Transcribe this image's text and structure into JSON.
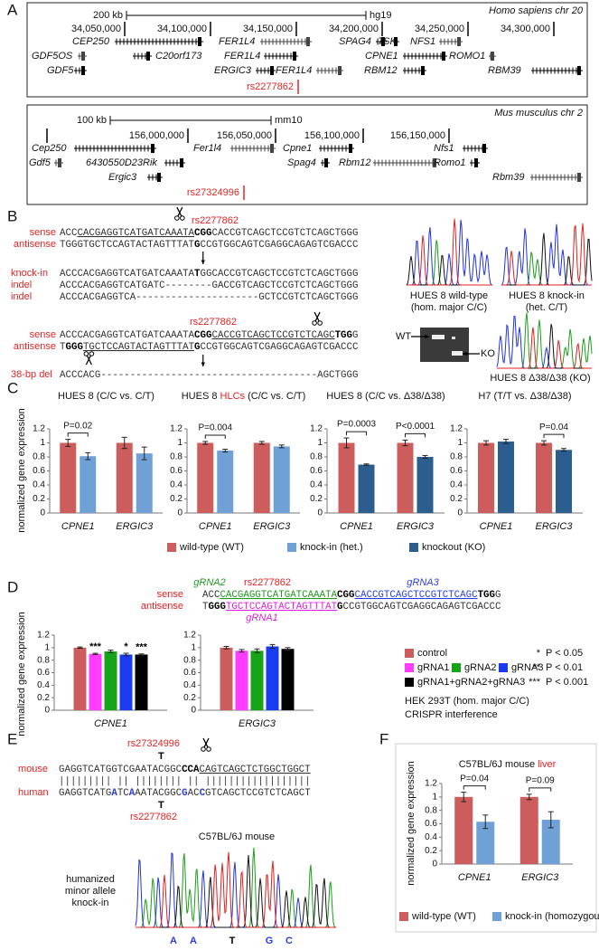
{
  "panel_labels": [
    "A",
    "B",
    "C",
    "D",
    "E",
    "F"
  ],
  "panel_a": {
    "human": {
      "species": "Homo sapiens chr 20",
      "scale": "200 kb",
      "assembly": "hg19",
      "coords": [
        "34,050,000",
        "34,100,000",
        "34,150,000",
        "34,200,000",
        "34,250,000",
        "34,300,000"
      ],
      "genes": [
        "CEP250",
        "GDF5OS",
        "GDF5",
        "C20orf173",
        "FER1L4",
        "FER1L4",
        "ERGIC3",
        "FER1L4",
        "SPAG4",
        "7SK",
        "NFS1",
        "CPNE1",
        "RBM12",
        "ROMO1",
        "RBM39"
      ],
      "snp": "rs2277862"
    },
    "mouse": {
      "species": "Mus musculus chr 2",
      "scale": "100 kb",
      "assembly": "mm10",
      "coords": [
        "156,000,000",
        "156,050,000",
        "156,100,000",
        "156,150,000"
      ],
      "genes": [
        "Cep250",
        "Gdf5",
        "6430550D23Rik",
        "Ergic3",
        "Fer1l4",
        "Spag4",
        "Cpne1",
        "Rbm12",
        "Nfs1",
        "Romo1",
        "Rbm39"
      ],
      "snp": "rs27324996"
    }
  },
  "panel_b": {
    "block1": {
      "snp": "rs2277862",
      "sense_label": "sense",
      "antisense_label": "antisense",
      "sense": [
        "ACC",
        "CACGAGGTCATGATCAAATA",
        "CGG",
        "CACCGTCAGCTCCGTCTCAGCTGGG"
      ],
      "antisense": [
        "TGGGTGCTCCAGTACTAGTTTAT",
        "G",
        "CCGTGGCAGTCGAGGCAGAGTCGACCC"
      ],
      "edits": [
        {
          "label": "knock-in",
          "seq": [
            "ACCCACGAGGTCATGATCAAATA",
            "T",
            "GGCACCGTCAGCTCCGTCTCAGCTGGG"
          ]
        },
        {
          "label": "indel",
          "seq": [
            "ACCCACGAGGTCATGATC--------GACCGTCAGCTCCGTCTCAGCTGGG"
          ]
        },
        {
          "label": "indel",
          "seq": [
            "ACCCACGAGGTCA---------------------GCTCCGTCTCAGCTGGG"
          ]
        }
      ]
    },
    "block2": {
      "snp": "rs2277862",
      "sense_label": "sense",
      "antisense_label": "antisense",
      "sense": [
        "ACCCACGAGGTCATGATCAAATA",
        "C",
        "GG",
        "CACCGTCAGCTCCGTCTCAGC",
        "TGG",
        "G"
      ],
      "antisense": [
        "T",
        "GGG",
        "TGCTCCAGTACTAGTTTAT",
        "G",
        "CCGTGGCAGTCGAGGCAGAGTCGACCC"
      ],
      "deletion": {
        "label": "38-bp del",
        "seq": "ACCCACG-------------------------------------AGCTGGG"
      }
    },
    "chromatograms": [
      {
        "title": "HUES 8 wild-type",
        "subtitle": "(hom. major C/C)"
      },
      {
        "title": "HUES 8 knock-in",
        "subtitle": "(het. C/T)"
      },
      {
        "title": "HUES 8 Δ38/Δ38 (KO)"
      }
    ],
    "gel": {
      "wt": "WT",
      "ko": "KO"
    }
  },
  "panel_c": {
    "legend": [
      {
        "label": "wild-type (WT)",
        "color": "#cd5c5c"
      },
      {
        "label": "knock-in (het.)",
        "color": "#6fa0d6"
      },
      {
        "label": "knockout (KO)",
        "color": "#2b5d8f"
      }
    ]
  },
  "panel_d": {
    "labels": {
      "grna2": "gRNA2",
      "snp": "rs2277862",
      "grna3": "gRNA3",
      "grna1": "gRNA1"
    },
    "sense_label": "sense",
    "antisense_label": "antisense",
    "sense": [
      "ACC",
      "CACGAGGTCATGATCAAATA",
      "C",
      "GG",
      "CACCGTCAGCTCCGTCTCAGC",
      "TGG",
      "G"
    ],
    "antisense": [
      "T",
      "GGG",
      "TGCTCCAGTACTAGTTTAT",
      "G",
      "CCGTGGCAGTCGAGGCAGAGTCGACCC"
    ],
    "legend": [
      {
        "label": "control",
        "color": "#cd5c5c"
      },
      {
        "label": "gRNA1",
        "color": "#ff3cff"
      },
      {
        "label": "gRNA2",
        "color": "#17a317"
      },
      {
        "label": "gRNA3",
        "color": "#1a3cf0"
      },
      {
        "label": "gRNA1+gRNA2+gRNA3",
        "color": "#000000"
      }
    ],
    "significance": [
      {
        "mark": "*",
        "text": "P < 0.05"
      },
      {
        "mark": "**",
        "text": "P < 0.01"
      },
      {
        "mark": "***",
        "text": "P < 0.001"
      }
    ],
    "notes": [
      "HEK 293T (hom. major C/C)",
      "CRISPR interference"
    ]
  },
  "panel_e": {
    "snp_mouse": "rs27324996",
    "allele_mouse": "T",
    "mouse_label": "mouse",
    "mouse": [
      "GAGGTCATGGTCGAATACGGC",
      "CCA",
      "CAGTCAGCTCTGGCTGGCT"
    ],
    "match": "||||||||| || |||||||| || ||||||||||||||||||",
    "human_label": "human",
    "human": [
      "GAGGTCATG",
      "A",
      "TC",
      "A",
      "AATACGGC",
      "G",
      "AC",
      "C",
      "GTCAGCTCCGTCTCAGCT"
    ],
    "allele_human": "T",
    "snp_human": "rs2277862",
    "chromatogram_title": "C57BL/6J mouse",
    "caption": [
      "humanized",
      "minor allele",
      "knock-in"
    ],
    "bases": [
      "A",
      "A",
      "T",
      "G",
      "C"
    ]
  },
  "panel_f": {
    "legend": [
      {
        "label": "wild-type (WT)",
        "color": "#cd5c5c"
      },
      {
        "label": "knock-in (homozygous)",
        "color": "#6fa0d6"
      }
    ]
  },
  "chart_data": [
    {
      "type": "bar",
      "title": "HUES 8 (C/C vs. C/T)",
      "ylabel": "normalized gene expression",
      "categories": [
        "CPNE1",
        "ERGIC3"
      ],
      "series": [
        {
          "color": "#cd5c5c",
          "values": [
            1,
            1
          ],
          "errors": [
            0.05,
            0.08
          ]
        },
        {
          "color": "#6fa0d6",
          "values": [
            0.81,
            0.85
          ],
          "errors": [
            0.05,
            0.09
          ]
        }
      ],
      "ylim": [
        0,
        1.2
      ],
      "yticks": [
        0,
        0.2,
        0.4,
        0.6,
        0.8,
        1,
        1.2
      ],
      "annotations": [
        {
          "text": "P=0.02",
          "category": 0
        }
      ]
    },
    {
      "type": "bar",
      "title": [
        "HUES 8 ",
        "HLCs",
        " (C/C vs. C/T)"
      ],
      "title_highlight": 1,
      "categories": [
        "CPNE1",
        "ERGIC3"
      ],
      "series": [
        {
          "color": "#cd5c5c",
          "values": [
            1,
            1
          ],
          "errors": [
            0.02,
            0.02
          ]
        },
        {
          "color": "#6fa0d6",
          "values": [
            0.89,
            0.95
          ],
          "errors": [
            0.02,
            0.02
          ]
        }
      ],
      "ylim": [
        0,
        1.2
      ],
      "yticks": [
        0,
        0.2,
        0.4,
        0.6,
        0.8,
        1,
        1.2
      ],
      "annotations": [
        {
          "text": "P=0.004",
          "category": 0
        }
      ]
    },
    {
      "type": "bar",
      "title": "HUES 8 (C/C vs. Δ38/Δ38)",
      "categories": [
        "CPNE1",
        "ERGIC3"
      ],
      "series": [
        {
          "color": "#cd5c5c",
          "values": [
            1,
            1
          ],
          "errors": [
            0.07,
            0.04
          ]
        },
        {
          "color": "#2b5d8f",
          "values": [
            0.69,
            0.8
          ],
          "errors": [
            0.01,
            0.02
          ]
        }
      ],
      "ylim": [
        0,
        1.2
      ],
      "yticks": [
        0,
        0.2,
        0.4,
        0.6,
        0.8,
        1,
        1.2
      ],
      "annotations": [
        {
          "text": "P=0.0003",
          "category": 0
        },
        {
          "text": "P<0.0001",
          "category": 1
        }
      ]
    },
    {
      "type": "bar",
      "title": "H7 (T/T vs. Δ38/Δ38)",
      "categories": [
        "CPNE1",
        "ERGIC3"
      ],
      "series": [
        {
          "color": "#cd5c5c",
          "values": [
            1,
            1
          ],
          "errors": [
            0.03,
            0.03
          ]
        },
        {
          "color": "#2b5d8f",
          "values": [
            1.02,
            0.9
          ],
          "errors": [
            0.03,
            0.02
          ]
        }
      ],
      "ylim": [
        0,
        1.2
      ],
      "yticks": [
        0,
        0.2,
        0.4,
        0.6,
        0.8,
        1,
        1.2
      ],
      "annotations": [
        {
          "text": "P=0.04",
          "category": 1
        }
      ]
    },
    {
      "type": "bar",
      "ylabel": "normalized gene expression",
      "categories": [
        "CPNE1"
      ],
      "series": [
        {
          "color": "#cd5c5c",
          "values": [
            1
          ],
          "errors": [
            0.01
          ]
        },
        {
          "color": "#ff3cff",
          "values": [
            0.9
          ],
          "errors": [
            0.01
          ]
        },
        {
          "color": "#17a317",
          "values": [
            0.94
          ],
          "errors": [
            0.02
          ]
        },
        {
          "color": "#1a3cf0",
          "values": [
            0.89
          ],
          "errors": [
            0.02
          ]
        },
        {
          "color": "#000000",
          "values": [
            0.89
          ],
          "errors": [
            0.01
          ]
        }
      ],
      "ylim": [
        0,
        1.2
      ],
      "yticks": [
        0,
        0.2,
        0.4,
        0.6,
        0.8,
        1,
        1.2
      ],
      "annotations": [
        {
          "text": "***",
          "category": 0,
          "series": 1
        },
        {
          "text": "*",
          "category": 0,
          "series": 3
        },
        {
          "text": "***",
          "category": 0,
          "series": 4
        }
      ]
    },
    {
      "type": "bar",
      "categories": [
        "ERGIC3"
      ],
      "series": [
        {
          "color": "#cd5c5c",
          "values": [
            1
          ],
          "errors": [
            0.02
          ]
        },
        {
          "color": "#ff3cff",
          "values": [
            0.95
          ],
          "errors": [
            0.02
          ]
        },
        {
          "color": "#17a317",
          "values": [
            0.95
          ],
          "errors": [
            0.03
          ]
        },
        {
          "color": "#1a3cf0",
          "values": [
            1.02
          ],
          "errors": [
            0.03
          ]
        },
        {
          "color": "#000000",
          "values": [
            0.98
          ],
          "errors": [
            0.02
          ]
        }
      ],
      "ylim": [
        0,
        1.2
      ],
      "yticks": [
        0,
        0.2,
        0.4,
        0.6,
        0.8,
        1,
        1.2
      ]
    },
    {
      "type": "bar",
      "title": [
        "C57BL/6J mouse ",
        "liver"
      ],
      "title_highlight": 1,
      "ylabel": "normalized gene expression",
      "categories": [
        "CPNE1",
        "ERGIC3"
      ],
      "series": [
        {
          "color": "#cd5c5c",
          "values": [
            1,
            1
          ],
          "errors": [
            0.07,
            0.04
          ]
        },
        {
          "color": "#6fa0d6",
          "values": [
            0.63,
            0.66
          ],
          "errors": [
            0.1,
            0.12
          ]
        }
      ],
      "ylim": [
        0,
        1.2
      ],
      "yticks": [
        0,
        0.2,
        0.4,
        0.6,
        0.8,
        1,
        1.2
      ],
      "annotations": [
        {
          "text": "P=0.04",
          "category": 0
        },
        {
          "text": "P=0.09",
          "category": 1
        }
      ]
    }
  ]
}
